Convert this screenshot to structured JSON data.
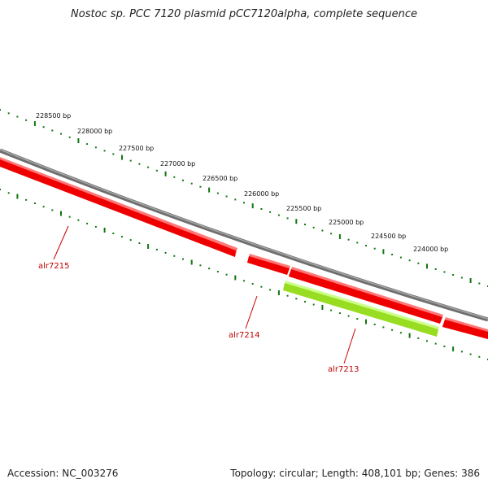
{
  "title": "Nostoc sp. PCC 7120 plasmid pCC7120alpha, complete sequence",
  "accession_label": "Accession:",
  "accession": "NC_003276",
  "summary": "Topology: circular; Length: 408,101 bp; Genes: 386",
  "colors": {
    "backbone": "#808080",
    "gene_red": "#ee0000",
    "gene_red_edge": "#ff7070",
    "gene_green": "#99ee22",
    "gene_green_edge": "#ccff88",
    "tick_green": "#117711",
    "label_red": "#c00000"
  },
  "position_labels": [
    {
      "text": "228500 bp"
    },
    {
      "text": "228000 bp"
    },
    {
      "text": "227500 bp"
    },
    {
      "text": "227000 bp"
    },
    {
      "text": "226500 bp"
    },
    {
      "text": "226000 bp"
    },
    {
      "text": "225500 bp"
    },
    {
      "text": "225000 bp"
    },
    {
      "text": "224500 bp"
    },
    {
      "text": "224000 bp"
    }
  ],
  "genes": [
    {
      "name": "alr7215",
      "color": "red"
    },
    {
      "name": "alr7214",
      "color": "red"
    },
    {
      "name": "alr7213",
      "color": "green"
    }
  ]
}
